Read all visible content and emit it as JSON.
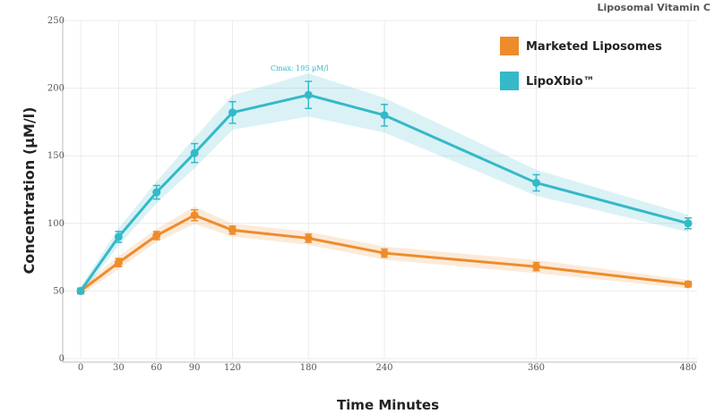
{
  "brand_label": "Liposomal Vitamin C",
  "colors": {
    "background": "#ffffff",
    "grid": "#ececec",
    "axis": "#bdbdbd"
  },
  "chart_data": {
    "type": "line",
    "title": "",
    "xlabel": "Time Minutes",
    "ylabel": "Concentration (μM/l)",
    "x": [
      0,
      30,
      60,
      90,
      120,
      180,
      240,
      360,
      480
    ],
    "xlim": [
      0,
      480
    ],
    "ylim": [
      0,
      250
    ],
    "x_ticks": [
      0,
      30,
      60,
      90,
      120,
      180,
      240,
      360,
      480
    ],
    "y_ticks": [
      0,
      50,
      100,
      150,
      200,
      250
    ],
    "grid": true,
    "legend_position": "top-right",
    "series": [
      {
        "name": "Marketed Liposomes",
        "color": "#ee8c2c",
        "values": [
          50,
          71,
          91,
          106,
          95,
          89,
          78,
          68,
          55
        ],
        "error": [
          2,
          3,
          3,
          4,
          3,
          3,
          3,
          3,
          2
        ]
      },
      {
        "name": "LipoXbio™",
        "color": "#34b9c8",
        "values": [
          50,
          90,
          123,
          152,
          182,
          195,
          180,
          130,
          100
        ],
        "error": [
          2,
          4,
          5,
          7,
          8,
          10,
          8,
          6,
          4
        ]
      }
    ],
    "annotations": [
      {
        "text": "Cmax: 195 μM/l",
        "x": 180,
        "y": 195,
        "series": 1
      }
    ]
  }
}
